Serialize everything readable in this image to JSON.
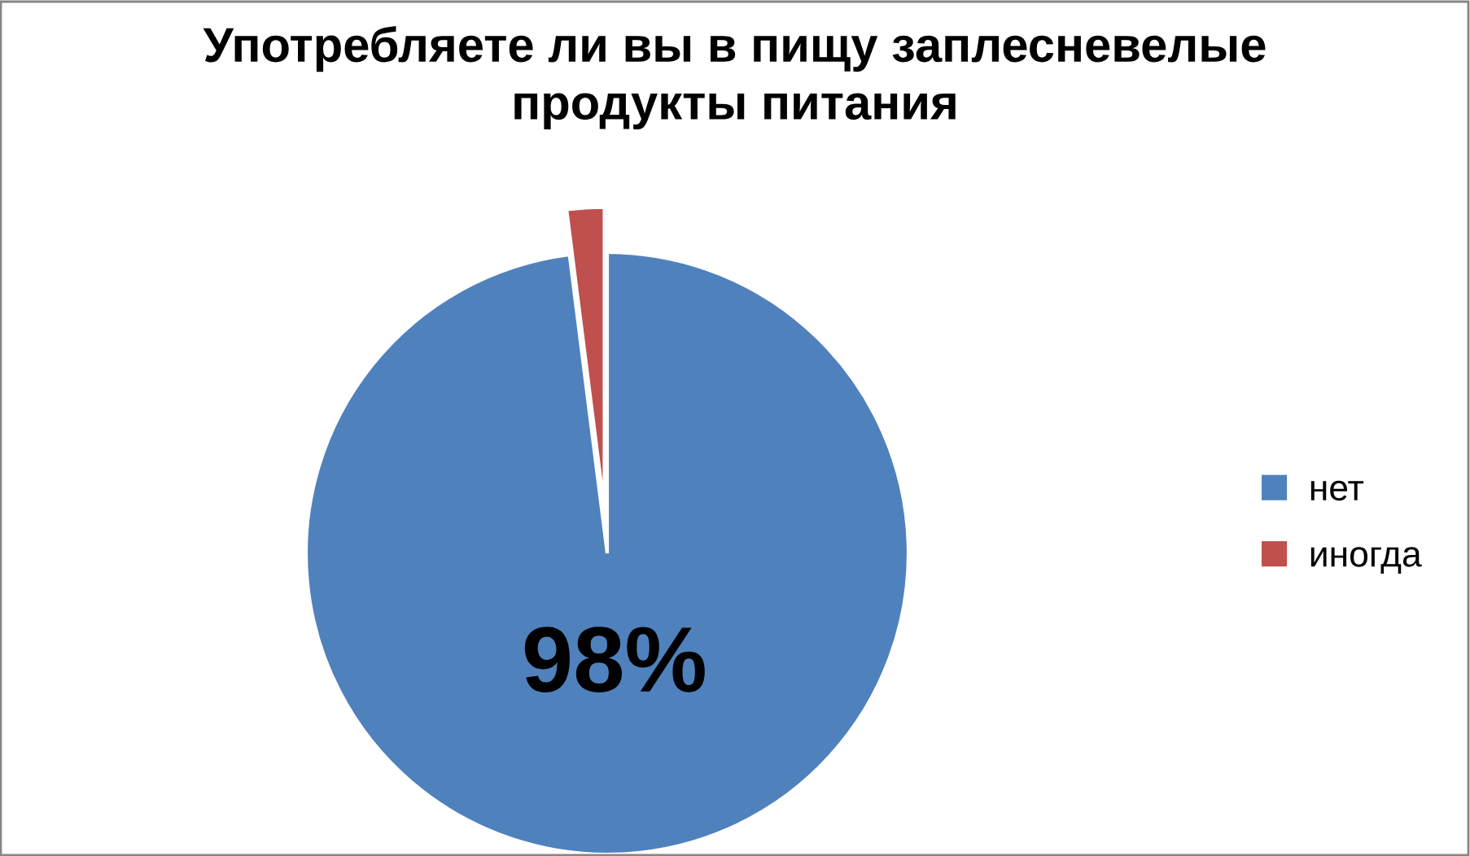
{
  "chart_data": {
    "type": "pie",
    "title": "Употребляете ли вы в пищу заплесневелые продукты питания",
    "categories": [
      "нет",
      "иногда"
    ],
    "values": [
      98,
      2
    ],
    "colors": [
      "#4f81bd",
      "#c0504d"
    ],
    "value_labels": [
      "98%",
      null
    ],
    "legend": "right"
  }
}
